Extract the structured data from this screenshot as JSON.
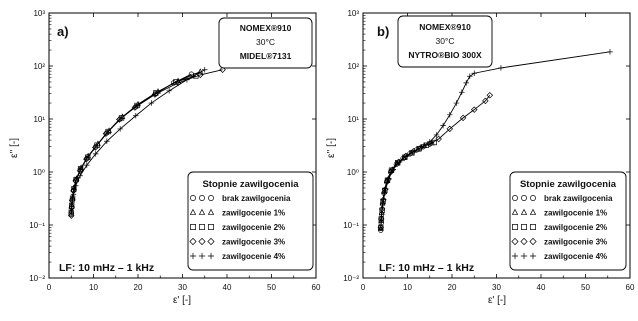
{
  "chart_data": [
    {
      "type": "scatter",
      "panel_label": "a)",
      "info_box": [
        "NOMEX®910",
        "30°C",
        "MIDEL®7131"
      ],
      "legend_title": "Stopnie zawilgocenia",
      "legend_placement": "bottom-right",
      "annotation": "LF: 10 mHz – 1 kHz",
      "xlabel": "ε' [-]",
      "ylabel": "ε'' [-]",
      "xlim": [
        0,
        60
      ],
      "ylim": [
        0.01,
        1000
      ],
      "y_scale": "log",
      "x_ticks": [
        "0",
        "10",
        "20",
        "30",
        "40",
        "50",
        "60"
      ],
      "y_ticks": [
        "10⁻²",
        "10⁻¹",
        "10⁰",
        "10¹",
        "10²",
        "10³"
      ],
      "series": [
        {
          "name": "brak zawilgocenia",
          "marker": "circle",
          "points": [
            [
              5.0,
              0.16
            ],
            [
              5.1,
              0.22
            ],
            [
              5.2,
              0.3
            ],
            [
              5.5,
              0.45
            ],
            [
              6.0,
              0.7
            ],
            [
              7.0,
              1.1
            ],
            [
              8.5,
              1.8
            ],
            [
              10.5,
              3.0
            ],
            [
              13,
              5.5
            ],
            [
              16,
              10
            ],
            [
              19.5,
              17
            ],
            [
              24,
              30
            ],
            [
              28,
              48
            ],
            [
              32,
              70
            ]
          ]
        },
        {
          "name": "zawilgocenie 1%",
          "marker": "triangle",
          "points": [
            [
              5.0,
              0.18
            ],
            [
              5.1,
              0.24
            ],
            [
              5.3,
              0.33
            ],
            [
              5.6,
              0.5
            ],
            [
              6.2,
              0.75
            ],
            [
              7.2,
              1.2
            ],
            [
              8.8,
              2.0
            ],
            [
              11,
              3.4
            ],
            [
              13.5,
              6.0
            ],
            [
              16.5,
              11
            ],
            [
              20,
              19
            ],
            [
              24.5,
              33
            ],
            [
              29,
              52
            ],
            [
              34,
              78
            ]
          ]
        },
        {
          "name": "zawilgocenie 2%",
          "marker": "square",
          "points": [
            [
              5.0,
              0.17
            ],
            [
              5.1,
              0.23
            ],
            [
              5.3,
              0.32
            ],
            [
              5.6,
              0.48
            ],
            [
              6.1,
              0.72
            ],
            [
              7.1,
              1.15
            ],
            [
              8.7,
              1.9
            ],
            [
              10.8,
              3.2
            ],
            [
              13.3,
              5.8
            ],
            [
              16.3,
              10.5
            ],
            [
              19.8,
              18
            ],
            [
              24,
              31
            ],
            [
              28.5,
              50
            ],
            [
              33,
              65
            ]
          ]
        },
        {
          "name": "zawilgocenie 3%",
          "marker": "diamond",
          "points": [
            [
              5.0,
              0.15
            ],
            [
              5.1,
              0.21
            ],
            [
              5.2,
              0.29
            ],
            [
              5.5,
              0.44
            ],
            [
              6.0,
              0.68
            ],
            [
              7.0,
              1.05
            ],
            [
              8.4,
              1.75
            ],
            [
              10.4,
              2.9
            ],
            [
              12.8,
              5.3
            ],
            [
              15.8,
              9.8
            ],
            [
              19.3,
              16.5
            ],
            [
              23.8,
              29
            ],
            [
              29,
              48
            ],
            [
              34,
              68
            ],
            [
              39,
              85
            ]
          ]
        },
        {
          "name": "zawilgocenie 4%",
          "marker": "plus",
          "points": [
            [
              5.0,
              0.2
            ],
            [
              5.2,
              0.27
            ],
            [
              5.5,
              0.38
            ],
            [
              6.0,
              0.55
            ],
            [
              7.0,
              0.85
            ],
            [
              8.5,
              1.35
            ],
            [
              10.5,
              2.2
            ],
            [
              13,
              3.8
            ],
            [
              16,
              6.5
            ],
            [
              19.5,
              11.5
            ],
            [
              23,
              20
            ],
            [
              27,
              34
            ],
            [
              31,
              55
            ],
            [
              35,
              85
            ]
          ]
        }
      ]
    },
    {
      "type": "scatter",
      "panel_label": "b)",
      "info_box": [
        "NOMEX®910",
        "30°C",
        "NYTRO®BIO 300X"
      ],
      "legend_title": "Stopnie zawilgocenia",
      "legend_placement": "bottom-right",
      "annotation": "LF: 10 mHz – 1 kHz",
      "xlabel": "ε' [-]",
      "ylabel": "ε'' [-]",
      "xlim": [
        0,
        60
      ],
      "ylim": [
        0.01,
        1000
      ],
      "y_scale": "log",
      "x_ticks": [
        "0",
        "10",
        "20",
        "30",
        "40",
        "50",
        "60"
      ],
      "y_ticks": [
        "10⁻²",
        "10⁻¹",
        "10⁰",
        "10¹",
        "10²",
        "10³"
      ],
      "series": [
        {
          "name": "brak zawilgocenia",
          "marker": "circle",
          "points": [
            [
              4.0,
              0.08
            ],
            [
              4.1,
              0.11
            ],
            [
              4.2,
              0.16
            ],
            [
              4.4,
              0.25
            ],
            [
              4.7,
              0.4
            ],
            [
              5.3,
              0.65
            ],
            [
              6.2,
              1.0
            ],
            [
              7.5,
              1.4
            ],
            [
              9.0,
              1.8
            ],
            [
              10.5,
              2.2
            ],
            [
              12,
              2.6
            ],
            [
              13.5,
              3.0
            ],
            [
              15,
              3.4
            ]
          ]
        },
        {
          "name": "zawilgocenie 1%",
          "marker": "triangle",
          "points": [
            [
              4.0,
              0.085
            ],
            [
              4.1,
              0.12
            ],
            [
              4.2,
              0.17
            ],
            [
              4.4,
              0.26
            ],
            [
              4.8,
              0.42
            ],
            [
              5.4,
              0.68
            ],
            [
              6.3,
              1.05
            ],
            [
              7.7,
              1.45
            ],
            [
              9.2,
              1.85
            ],
            [
              10.8,
              2.25
            ],
            [
              12.3,
              2.65
            ],
            [
              13.8,
              3.1
            ],
            [
              15.5,
              3.5
            ]
          ]
        },
        {
          "name": "zawilgocenie 2%",
          "marker": "square",
          "points": [
            [
              4.0,
              0.09
            ],
            [
              4.1,
              0.13
            ],
            [
              4.3,
              0.19
            ],
            [
              4.5,
              0.28
            ],
            [
              4.9,
              0.45
            ],
            [
              5.5,
              0.7
            ],
            [
              6.4,
              1.08
            ],
            [
              7.8,
              1.5
            ],
            [
              9.4,
              1.9
            ],
            [
              11,
              2.3
            ],
            [
              12.6,
              2.75
            ],
            [
              14.2,
              3.2
            ],
            [
              16,
              3.6
            ]
          ]
        },
        {
          "name": "zawilgocenie 3%",
          "marker": "diamond",
          "points": [
            [
              4.0,
              0.09
            ],
            [
              4.1,
              0.13
            ],
            [
              4.3,
              0.2
            ],
            [
              4.6,
              0.3
            ],
            [
              5.0,
              0.47
            ],
            [
              5.7,
              0.73
            ],
            [
              6.6,
              1.1
            ],
            [
              8,
              1.55
            ],
            [
              9.6,
              2.0
            ],
            [
              11.3,
              2.45
            ],
            [
              13,
              2.9
            ],
            [
              15,
              3.4
            ],
            [
              17,
              4.2
            ],
            [
              19.5,
              6.5
            ],
            [
              22.5,
              10.5
            ],
            [
              25,
              15
            ],
            [
              27.5,
              22
            ],
            [
              28.5,
              28
            ]
          ]
        },
        {
          "name": "zawilgocenie 4%",
          "marker": "plus",
          "points": [
            [
              4.0,
              0.09
            ],
            [
              4.1,
              0.13
            ],
            [
              4.3,
              0.2
            ],
            [
              4.6,
              0.3
            ],
            [
              5.1,
              0.48
            ],
            [
              5.8,
              0.75
            ],
            [
              6.8,
              1.12
            ],
            [
              8.2,
              1.55
            ],
            [
              9.8,
              2.0
            ],
            [
              11.5,
              2.5
            ],
            [
              13.2,
              3.0
            ],
            [
              15,
              3.7
            ],
            [
              16.5,
              5.0
            ],
            [
              18,
              7.5
            ],
            [
              19.5,
              12
            ],
            [
              21,
              20
            ],
            [
              22.2,
              32
            ],
            [
              23.2,
              48
            ],
            [
              24,
              64
            ],
            [
              25,
              73
            ],
            [
              31,
              92
            ],
            [
              55.5,
              185
            ]
          ]
        }
      ]
    }
  ]
}
